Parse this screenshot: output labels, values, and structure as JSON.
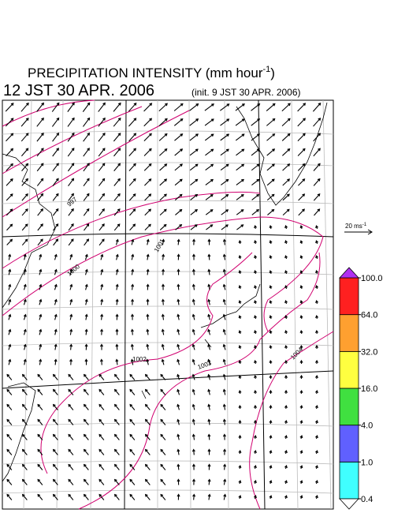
{
  "header": {
    "title": "PRECIPITATION INTENSITY (mm hour",
    "title_exponent": "-1",
    "title_end": ")",
    "valid_time": "12 JST 30 APR. 2006",
    "init_time": "(init. 9 JST 30 APR. 2006)"
  },
  "scale_vector": {
    "unit": "20 ms",
    "unit_exponent": "-1"
  },
  "colorbar": {
    "ticks": [
      {
        "value": 0.4,
        "label": "0.4"
      },
      {
        "value": 1,
        "label": "1.0"
      },
      {
        "value": 4,
        "label": "4.0"
      },
      {
        "value": 16,
        "label": "16.0"
      },
      {
        "value": 32,
        "label": "32.0"
      },
      {
        "value": 64,
        "label": "64.0"
      },
      {
        "value": 100,
        "label": "100.0"
      }
    ],
    "colors": [
      "#40ffff",
      "#6060ff",
      "#40e040",
      "#ffff40",
      "#ffa030",
      "#ff2020"
    ],
    "over_color": "#b030f0",
    "under_color": "#ffffff"
  },
  "contour_labels": [
    "997",
    "1000",
    "1001",
    "1002",
    "1003",
    "1004"
  ]
}
